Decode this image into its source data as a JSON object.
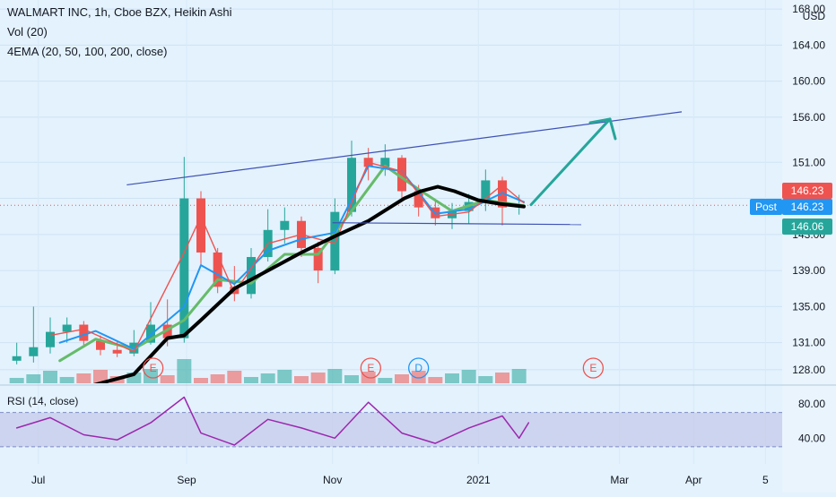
{
  "header": {
    "symbol_line": "WALMART INC, 1h, Cboe BZX, Heikin Ashi",
    "volume_line": "Vol (20)",
    "ema_line": "4EMA (20, 50, 100, 200, close)"
  },
  "rsi": {
    "label": "RSI (14, close)",
    "ticks": [
      "80.00",
      "40.00"
    ]
  },
  "price_axis": {
    "unit": "USD",
    "ticks": [
      "168.00",
      "164.00",
      "160.00",
      "156.00",
      "151.00",
      "147.00",
      "143.00",
      "139.00",
      "135.00",
      "131.00",
      "128.00"
    ]
  },
  "time_axis": {
    "labels": [
      "Jul",
      "Sep",
      "Nov",
      "2021",
      "Mar",
      "Apr",
      "5"
    ]
  },
  "price_tags": [
    {
      "text": "146.23",
      "color": "#ef5350"
    },
    {
      "text": "146.23",
      "color": "#2196f3",
      "badge": "Post"
    },
    {
      "text": "146.06",
      "color": "#26a69a"
    }
  ],
  "events": [
    "E",
    "E",
    "D",
    "E"
  ],
  "colors": {
    "background": "#e3f2fd",
    "up": "#26a69a",
    "down": "#ef5350",
    "ema_20": "#ef5350",
    "ema_50": "#2196f3",
    "ema_100": "#66bb6a",
    "ema_200": "#000000",
    "rsi_line": "#9c27b0",
    "rsi_band": "#c5cae9",
    "trendline": "#3f51b5",
    "arrow": "#26a69a"
  },
  "chart_data": {
    "type": "candlestick",
    "y_scale": "price",
    "ylim": [
      126.5,
      169.0
    ],
    "x_range": [
      "2020-06-15",
      "2021-05-08"
    ],
    "rsi_ylim": [
      10,
      100
    ],
    "candles": [
      {
        "date": "2020-06-22",
        "open": 129.0,
        "close": 129.5,
        "high": 131.0,
        "low": 128.6
      },
      {
        "date": "2020-06-29",
        "open": 129.5,
        "close": 130.5,
        "high": 135.0,
        "low": 128.8
      },
      {
        "date": "2020-07-06",
        "open": 130.5,
        "close": 132.2,
        "high": 133.8,
        "low": 129.8
      },
      {
        "date": "2020-07-13",
        "open": 132.2,
        "close": 133.0,
        "high": 133.8,
        "low": 131.0
      },
      {
        "date": "2020-07-20",
        "open": 133.0,
        "close": 131.2,
        "high": 133.4,
        "low": 130.5
      },
      {
        "date": "2020-07-27",
        "open": 131.2,
        "close": 130.2,
        "high": 131.8,
        "low": 129.6
      },
      {
        "date": "2020-08-03",
        "open": 130.2,
        "close": 129.8,
        "high": 131.2,
        "low": 129.4
      },
      {
        "date": "2020-08-10",
        "open": 129.8,
        "close": 131.0,
        "high": 132.4,
        "low": 129.5
      },
      {
        "date": "2020-08-17",
        "open": 131.0,
        "close": 133.0,
        "high": 135.5,
        "low": 130.8
      },
      {
        "date": "2020-08-24",
        "open": 133.0,
        "close": 131.5,
        "high": 135.8,
        "low": 130.6
      },
      {
        "date": "2020-08-31",
        "open": 131.5,
        "close": 147.0,
        "high": 151.6,
        "low": 131.0
      },
      {
        "date": "2020-09-07",
        "open": 147.0,
        "close": 141.0,
        "high": 147.8,
        "low": 139.5
      },
      {
        "date": "2020-09-14",
        "open": 141.0,
        "close": 137.2,
        "high": 141.5,
        "low": 136.5
      },
      {
        "date": "2020-09-21",
        "open": 137.2,
        "close": 136.4,
        "high": 139.5,
        "low": 135.6
      },
      {
        "date": "2020-09-28",
        "open": 136.4,
        "close": 140.5,
        "high": 141.5,
        "low": 135.9
      },
      {
        "date": "2020-10-05",
        "open": 140.5,
        "close": 143.5,
        "high": 145.8,
        "low": 140.0
      },
      {
        "date": "2020-10-12",
        "open": 143.5,
        "close": 144.5,
        "high": 146.0,
        "low": 142.0
      },
      {
        "date": "2020-10-19",
        "open": 144.5,
        "close": 141.5,
        "high": 145.0,
        "low": 140.5
      },
      {
        "date": "2020-10-26",
        "open": 141.5,
        "close": 139.0,
        "high": 142.2,
        "low": 137.6
      },
      {
        "date": "2020-11-02",
        "open": 139.0,
        "close": 145.5,
        "high": 147.0,
        "low": 138.6
      },
      {
        "date": "2020-11-09",
        "open": 145.5,
        "close": 151.5,
        "high": 153.4,
        "low": 145.0
      },
      {
        "date": "2020-11-16",
        "open": 151.5,
        "close": 150.5,
        "high": 152.6,
        "low": 149.0
      },
      {
        "date": "2020-11-23",
        "open": 150.5,
        "close": 151.5,
        "high": 153.0,
        "low": 149.5
      },
      {
        "date": "2020-11-30",
        "open": 151.5,
        "close": 147.8,
        "high": 151.8,
        "low": 147.0
      },
      {
        "date": "2020-12-07",
        "open": 147.8,
        "close": 146.0,
        "high": 148.5,
        "low": 145.0
      },
      {
        "date": "2020-12-14",
        "open": 146.0,
        "close": 144.8,
        "high": 146.8,
        "low": 144.0
      },
      {
        "date": "2020-12-21",
        "open": 144.8,
        "close": 145.6,
        "high": 146.5,
        "low": 143.6
      },
      {
        "date": "2020-12-28",
        "open": 145.6,
        "close": 146.6,
        "high": 147.5,
        "low": 144.2
      },
      {
        "date": "2021-01-04",
        "open": 146.6,
        "close": 149.0,
        "high": 150.2,
        "low": 145.6
      },
      {
        "date": "2021-01-11",
        "open": 149.0,
        "close": 146.0,
        "high": 149.4,
        "low": 144.0
      },
      {
        "date": "2021-01-18",
        "open": 146.0,
        "close": 146.2,
        "high": 147.4,
        "low": 145.2
      }
    ],
    "ema_200": [
      {
        "date": "2020-06-22",
        "y": 122.5
      },
      {
        "date": "2020-07-20",
        "y": 126.0
      },
      {
        "date": "2020-08-10",
        "y": 127.5
      },
      {
        "date": "2020-08-24",
        "y": 131.5
      },
      {
        "date": "2020-08-31",
        "y": 131.8
      },
      {
        "date": "2020-09-07",
        "y": 133.5
      },
      {
        "date": "2020-09-21",
        "y": 137.0
      },
      {
        "date": "2020-10-05",
        "y": 139.0
      },
      {
        "date": "2020-10-19",
        "y": 141.0
      },
      {
        "date": "2020-11-02",
        "y": 142.8
      },
      {
        "date": "2020-11-16",
        "y": 144.5
      },
      {
        "date": "2020-12-01",
        "y": 147.0
      },
      {
        "date": "2020-12-08",
        "y": 147.8
      },
      {
        "date": "2020-12-15",
        "y": 148.3
      },
      {
        "date": "2020-12-22",
        "y": 147.8
      },
      {
        "date": "2021-01-01",
        "y": 146.8
      },
      {
        "date": "2021-01-10",
        "y": 146.4
      },
      {
        "date": "2021-01-20",
        "y": 146.1
      }
    ],
    "ema_100": [
      {
        "date": "2020-07-10",
        "y": 129.0
      },
      {
        "date": "2020-07-25",
        "y": 131.4
      },
      {
        "date": "2020-08-10",
        "y": 130.3
      },
      {
        "date": "2020-08-31",
        "y": 133.5
      },
      {
        "date": "2020-09-14",
        "y": 138.0
      },
      {
        "date": "2020-09-28",
        "y": 137.6
      },
      {
        "date": "2020-10-12",
        "y": 140.8
      },
      {
        "date": "2020-10-26",
        "y": 140.8
      },
      {
        "date": "2020-11-09",
        "y": 145.6
      },
      {
        "date": "2020-11-23",
        "y": 150.6
      },
      {
        "date": "2020-12-07",
        "y": 148.0
      },
      {
        "date": "2020-12-21",
        "y": 145.6
      },
      {
        "date": "2021-01-04",
        "y": 146.8
      },
      {
        "date": "2021-01-20",
        "y": 146.2
      }
    ],
    "ema_50": [
      {
        "date": "2020-07-10",
        "y": 131.0
      },
      {
        "date": "2020-07-25",
        "y": 132.3
      },
      {
        "date": "2020-08-10",
        "y": 130.3
      },
      {
        "date": "2020-08-31",
        "y": 135.0
      },
      {
        "date": "2020-09-07",
        "y": 139.6
      },
      {
        "date": "2020-09-21",
        "y": 137.5
      },
      {
        "date": "2020-10-05",
        "y": 141.2
      },
      {
        "date": "2020-10-19",
        "y": 142.5
      },
      {
        "date": "2020-11-02",
        "y": 143.2
      },
      {
        "date": "2020-11-16",
        "y": 150.6
      },
      {
        "date": "2020-11-30",
        "y": 150.0
      },
      {
        "date": "2020-12-14",
        "y": 145.3
      },
      {
        "date": "2020-12-28",
        "y": 145.8
      },
      {
        "date": "2021-01-11",
        "y": 147.6
      },
      {
        "date": "2021-01-20",
        "y": 146.6
      }
    ],
    "ema_20": [
      {
        "date": "2020-07-06",
        "y": 131.8
      },
      {
        "date": "2020-07-20",
        "y": 132.5
      },
      {
        "date": "2020-08-10",
        "y": 130.0
      },
      {
        "date": "2020-08-31",
        "y": 141.0
      },
      {
        "date": "2020-09-07",
        "y": 145.0
      },
      {
        "date": "2020-09-21",
        "y": 136.5
      },
      {
        "date": "2020-10-05",
        "y": 142.0
      },
      {
        "date": "2020-10-19",
        "y": 143.0
      },
      {
        "date": "2020-11-02",
        "y": 142.0
      },
      {
        "date": "2020-11-16",
        "y": 151.0
      },
      {
        "date": "2020-11-30",
        "y": 150.0
      },
      {
        "date": "2020-12-14",
        "y": 145.0
      },
      {
        "date": "2020-12-28",
        "y": 145.5
      },
      {
        "date": "2021-01-11",
        "y": 148.5
      },
      {
        "date": "2021-01-20",
        "y": 146.5
      }
    ],
    "trendlines": [
      {
        "from": {
          "date": "2020-08-07",
          "y": 148.5
        },
        "to": {
          "date": "2021-03-27",
          "y": 156.6
        }
      },
      {
        "from": {
          "date": "2020-11-01",
          "y": 144.3
        },
        "to": {
          "date": "2021-02-13",
          "y": 144.1
        }
      }
    ],
    "projection_arrow": {
      "from": {
        "date": "2021-01-23",
        "y": 146.3
      },
      "to": {
        "date": "2021-02-25",
        "y": 155.8
      }
    },
    "rsi": [
      {
        "date": "2020-06-22",
        "y": 52
      },
      {
        "date": "2020-07-06",
        "y": 64
      },
      {
        "date": "2020-07-20",
        "y": 44
      },
      {
        "date": "2020-08-03",
        "y": 38
      },
      {
        "date": "2020-08-17",
        "y": 58
      },
      {
        "date": "2020-08-31",
        "y": 88
      },
      {
        "date": "2020-09-07",
        "y": 46
      },
      {
        "date": "2020-09-21",
        "y": 32
      },
      {
        "date": "2020-10-05",
        "y": 62
      },
      {
        "date": "2020-10-19",
        "y": 52
      },
      {
        "date": "2020-11-02",
        "y": 40
      },
      {
        "date": "2020-11-16",
        "y": 82
      },
      {
        "date": "2020-11-30",
        "y": 46
      },
      {
        "date": "2020-12-14",
        "y": 34
      },
      {
        "date": "2020-12-28",
        "y": 52
      },
      {
        "date": "2021-01-11",
        "y": 66
      },
      {
        "date": "2021-01-18",
        "y": 40
      },
      {
        "date": "2021-01-22",
        "y": 58
      }
    ]
  }
}
